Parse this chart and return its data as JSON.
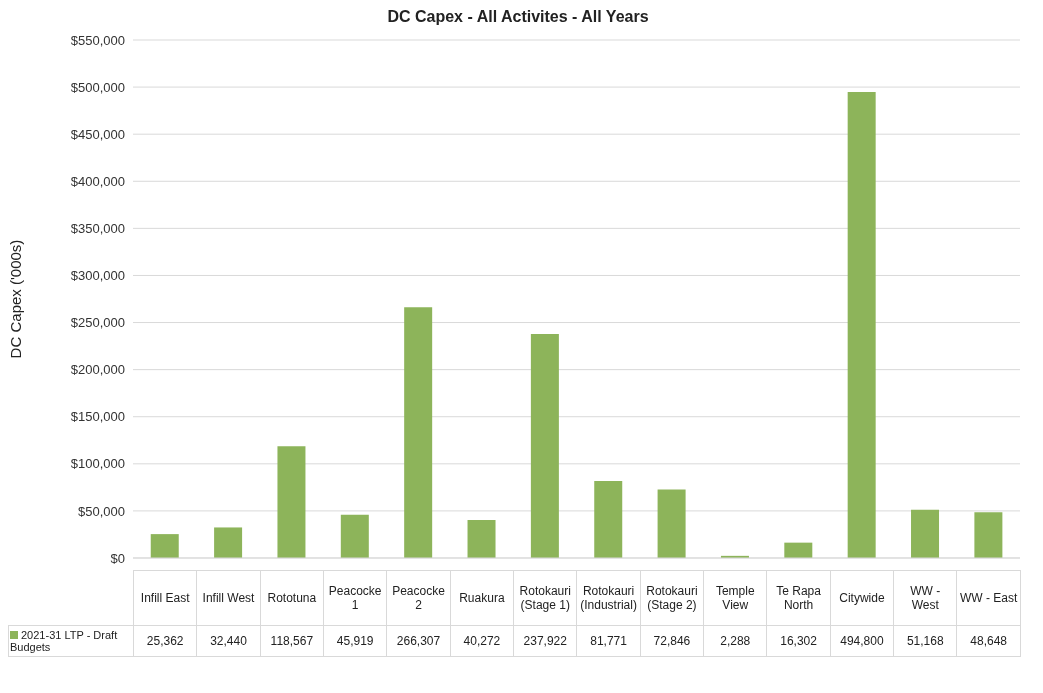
{
  "chart_data": {
    "type": "bar",
    "title": "DC Capex - All Activites - All Years",
    "ylabel": "DC Capex ('000s)",
    "categories": [
      "Infill East",
      "Infill West",
      "Rototuna",
      "Peacocke 1",
      "Peacocke 2",
      "Ruakura",
      "Rotokauri (Stage 1)",
      "Rotokauri (Industrial)",
      "Rotokauri (Stage 2)",
      "Temple View",
      "Te Rapa North",
      "Citywide",
      "WW - West",
      "WW - East"
    ],
    "series": [
      {
        "name": "2021-31 LTP - Draft Budgets",
        "color": "#8db45a",
        "values": [
          25362,
          32440,
          118567,
          45919,
          266307,
          40272,
          237922,
          81771,
          72846,
          2288,
          16302,
          494800,
          51168,
          48648
        ],
        "value_labels": [
          "25,362",
          "32,440",
          "118,567",
          "45,919",
          "266,307",
          "40,272",
          "237,922",
          "81,771",
          "72,846",
          "2,288",
          "16,302",
          "494,800",
          "51,168",
          "48,648"
        ]
      }
    ],
    "ylim": [
      0,
      550000
    ],
    "yticks": [
      {
        "value": 0,
        "label": "$0"
      },
      {
        "value": 50000,
        "label": "$50,000"
      },
      {
        "value": 100000,
        "label": "$100,000"
      },
      {
        "value": 150000,
        "label": "$150,000"
      },
      {
        "value": 200000,
        "label": "$200,000"
      },
      {
        "value": 250000,
        "label": "$250,000"
      },
      {
        "value": 300000,
        "label": "$300,000"
      },
      {
        "value": 350000,
        "label": "$350,000"
      },
      {
        "value": 400000,
        "label": "$400,000"
      },
      {
        "value": 450000,
        "label": "$450,000"
      },
      {
        "value": 500000,
        "label": "$500,000"
      },
      {
        "value": 550000,
        "label": "$550,000"
      }
    ],
    "grid": "y",
    "legend": "bottom"
  }
}
